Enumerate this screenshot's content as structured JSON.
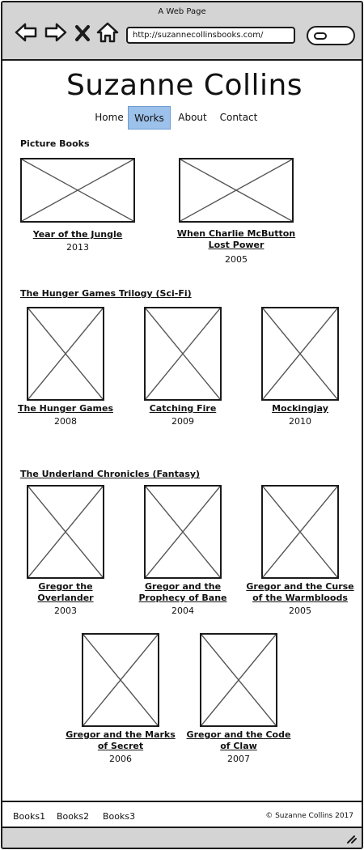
{
  "browser": {
    "window_title": "A Web Page",
    "url": "http://suzannecollinsbooks.com/",
    "icons": [
      "back-arrow-icon",
      "forward-arrow-icon",
      "close-x-icon",
      "home-icon",
      "search-icon"
    ]
  },
  "site": {
    "title": "Suzanne Collins"
  },
  "nav": {
    "items": [
      {
        "label": "Home",
        "active": false
      },
      {
        "label": "Works",
        "active": true
      },
      {
        "label": "About",
        "active": false
      },
      {
        "label": "Contact",
        "active": false
      }
    ],
    "active_color": "#9cc1ea"
  },
  "sections": [
    {
      "heading": "Picture Books",
      "books": [
        {
          "title_lines": [
            "Year of the Jungle"
          ],
          "year": "2013"
        },
        {
          "title_lines": [
            "When Charlie McButton",
            "Lost Power"
          ],
          "year": "2005"
        }
      ]
    },
    {
      "heading": "The Hunger Games Trilogy (Sci-Fi)",
      "books": [
        {
          "title_lines": [
            "The Hunger Games"
          ],
          "year": "2008"
        },
        {
          "title_lines": [
            "Catching Fire"
          ],
          "year": "2009"
        },
        {
          "title_lines": [
            "Mockingjay"
          ],
          "year": "2010"
        }
      ]
    },
    {
      "heading": "The Underland Chronicles (Fantasy)",
      "books": [
        {
          "title_lines": [
            "Gregor the",
            "Overlander"
          ],
          "year": "2003"
        },
        {
          "title_lines": [
            "Gregor and the",
            "Prophecy of Bane"
          ],
          "year": "2004"
        },
        {
          "title_lines": [
            "Gregor and the Curse",
            "of the Warmbloods"
          ],
          "year": "2005"
        },
        {
          "title_lines": [
            "Gregor and the Marks",
            "of Secret"
          ],
          "year": "2006"
        },
        {
          "title_lines": [
            "Gregor and the Code",
            "of Claw"
          ],
          "year": "2007"
        }
      ]
    }
  ],
  "footer": {
    "links": [
      "Books1",
      "Books2",
      "Books3"
    ],
    "copyright": "© Suzanne Collins 2017"
  }
}
